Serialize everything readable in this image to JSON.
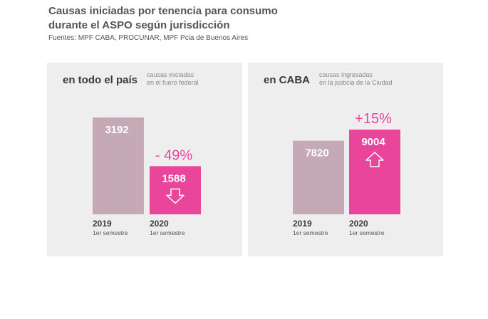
{
  "title_line1": "Causas iniciadas por tenencia para consumo",
  "title_line2": "durante el ASPO según jurisdicción",
  "source": "Fuentes: MPF CABA, PROCUNAR, MPF Pcia de Buenos Aires",
  "colors": {
    "bar_2019": "#c5a9b5",
    "bar_2020": "#e8459b",
    "panel_bg": "#eeeeee",
    "accent": "#e8459b"
  },
  "panels": [
    {
      "title": "en todo el país",
      "note_line1": "causas iniciadas",
      "note_line2": "en el fuero federal"
    },
    {
      "title": "en CABA",
      "note_line1": "causas ingresadas",
      "note_line2": "en la justicia de la Ciudad"
    }
  ],
  "chart_data": [
    {
      "type": "bar",
      "title": "en todo el país",
      "categories": [
        "2019",
        "2020"
      ],
      "sublabels": [
        "1er semestre",
        "1er semestre"
      ],
      "values": [
        3192,
        1588
      ],
      "change_label": "- 49%",
      "change_icon": "arrow-down-icon"
    },
    {
      "type": "bar",
      "title": "en CABA",
      "categories": [
        "2019",
        "2020"
      ],
      "sublabels": [
        "1er semestre",
        "1er semestre"
      ],
      "values": [
        7820,
        9004
      ],
      "change_label": "+15%",
      "change_icon": "arrow-up-icon"
    }
  ]
}
